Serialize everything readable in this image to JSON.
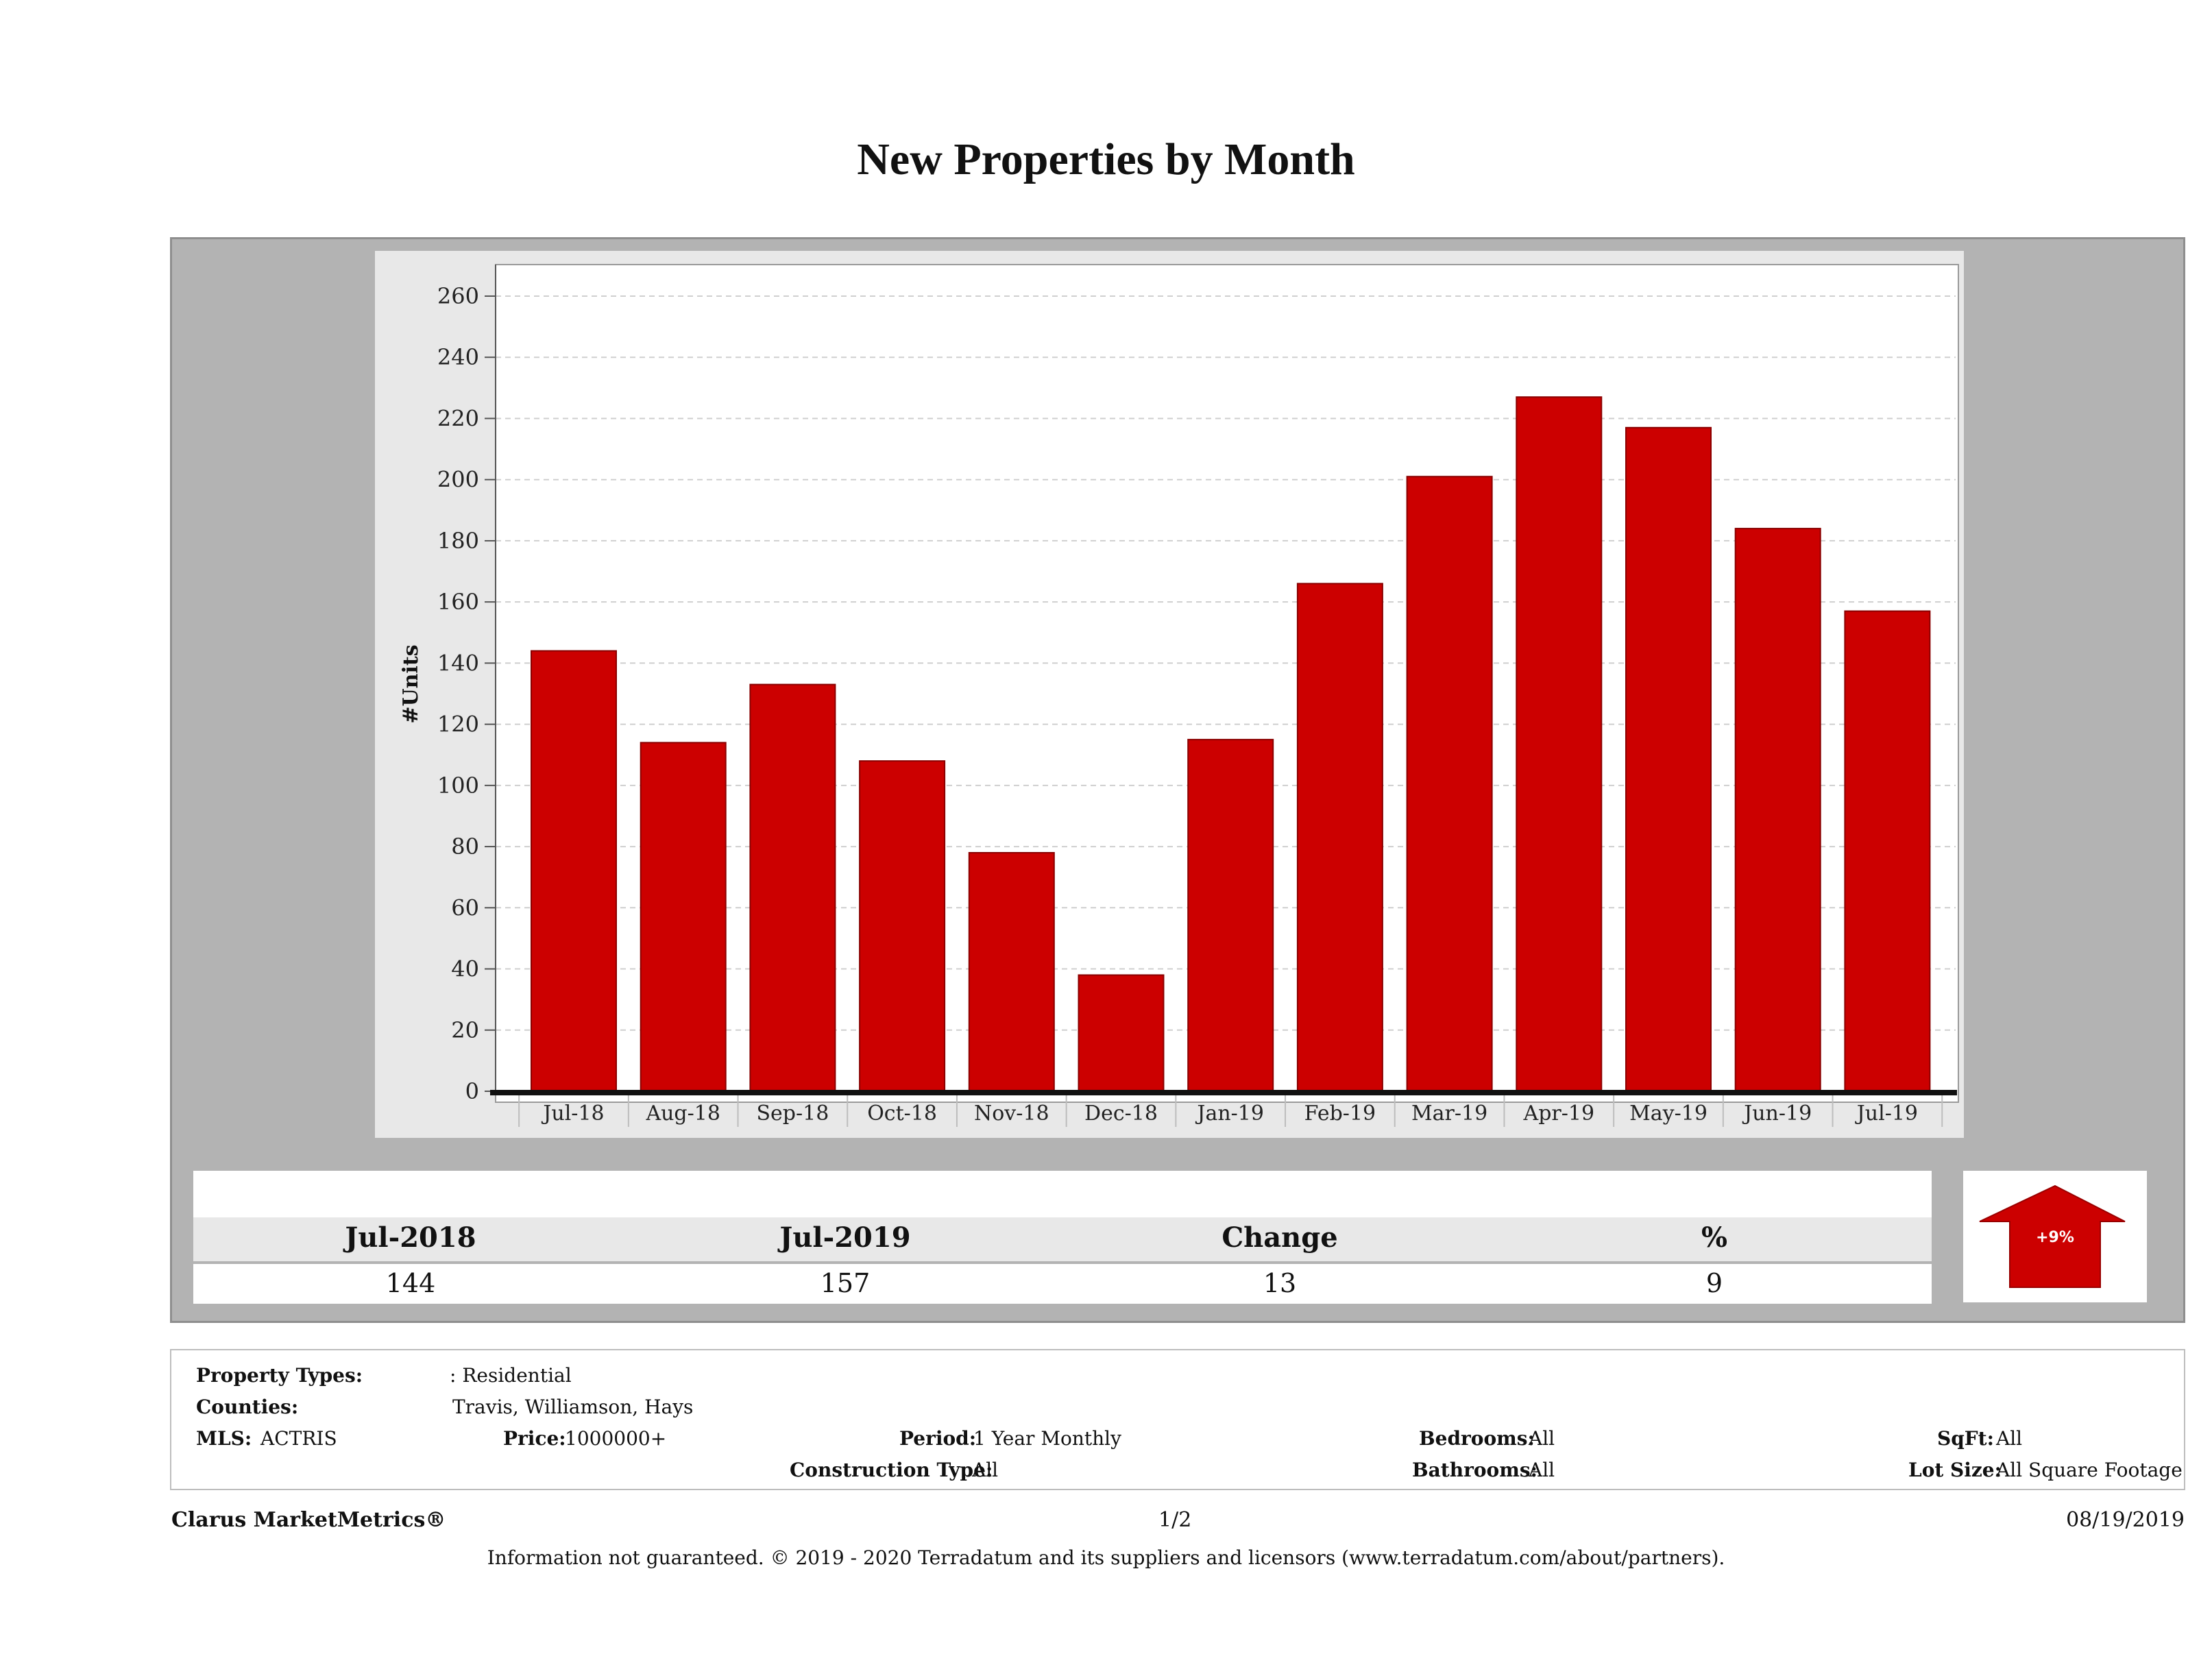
{
  "page": {
    "title": "New Properties by Month"
  },
  "chart_data": {
    "type": "bar",
    "title": "New Properties by Month",
    "xlabel": "",
    "ylabel": "#Units",
    "ylim": [
      0,
      260
    ],
    "yticks": [
      0,
      20,
      40,
      60,
      80,
      100,
      120,
      140,
      160,
      180,
      200,
      220,
      240,
      260
    ],
    "categories": [
      "Jul-18",
      "Aug-18",
      "Sep-18",
      "Oct-18",
      "Nov-18",
      "Dec-18",
      "Jan-19",
      "Feb-19",
      "Mar-19",
      "Apr-19",
      "May-19",
      "Jun-19",
      "Jul-19"
    ],
    "values": [
      144,
      114,
      133,
      108,
      78,
      38,
      115,
      166,
      201,
      227,
      217,
      184,
      157
    ],
    "grid": true,
    "bar_color": "#cc0000"
  },
  "summary": {
    "headers": [
      "Jul-2018",
      "Jul-2019",
      "Change",
      "%"
    ],
    "values": [
      "144",
      "157",
      "13",
      "9"
    ],
    "trend_label": "+9%",
    "trend_color": "#cc0000"
  },
  "filters": {
    "property_types_label": "Property Types:",
    "property_types_value": ": Residential",
    "counties_label": "Counties:",
    "counties_value": "Travis, Williamson, Hays",
    "mls_label": "MLS:",
    "mls_value": "ACTRIS",
    "price_label": "Price:",
    "price_value": "1000000+",
    "period_label": "Period:",
    "period_value": "1 Year Monthly",
    "construction_label": "Construction Type:",
    "construction_value": "All",
    "bedrooms_label": "Bedrooms:",
    "bedrooms_value": "All",
    "bathrooms_label": "Bathrooms:",
    "bathrooms_value": "All",
    "sqft_label": "SqFt:",
    "sqft_value": "All",
    "lotsize_label": "Lot Size:",
    "lotsize_value": "All Square Footage"
  },
  "footer": {
    "brand": "Clarus MarketMetrics®",
    "page": "1/2",
    "date": "08/19/2019",
    "disclaimer": "Information not guaranteed. © 2019 - 2020 Terradatum and its suppliers and licensors (www.terradatum.com/about/partners)."
  }
}
